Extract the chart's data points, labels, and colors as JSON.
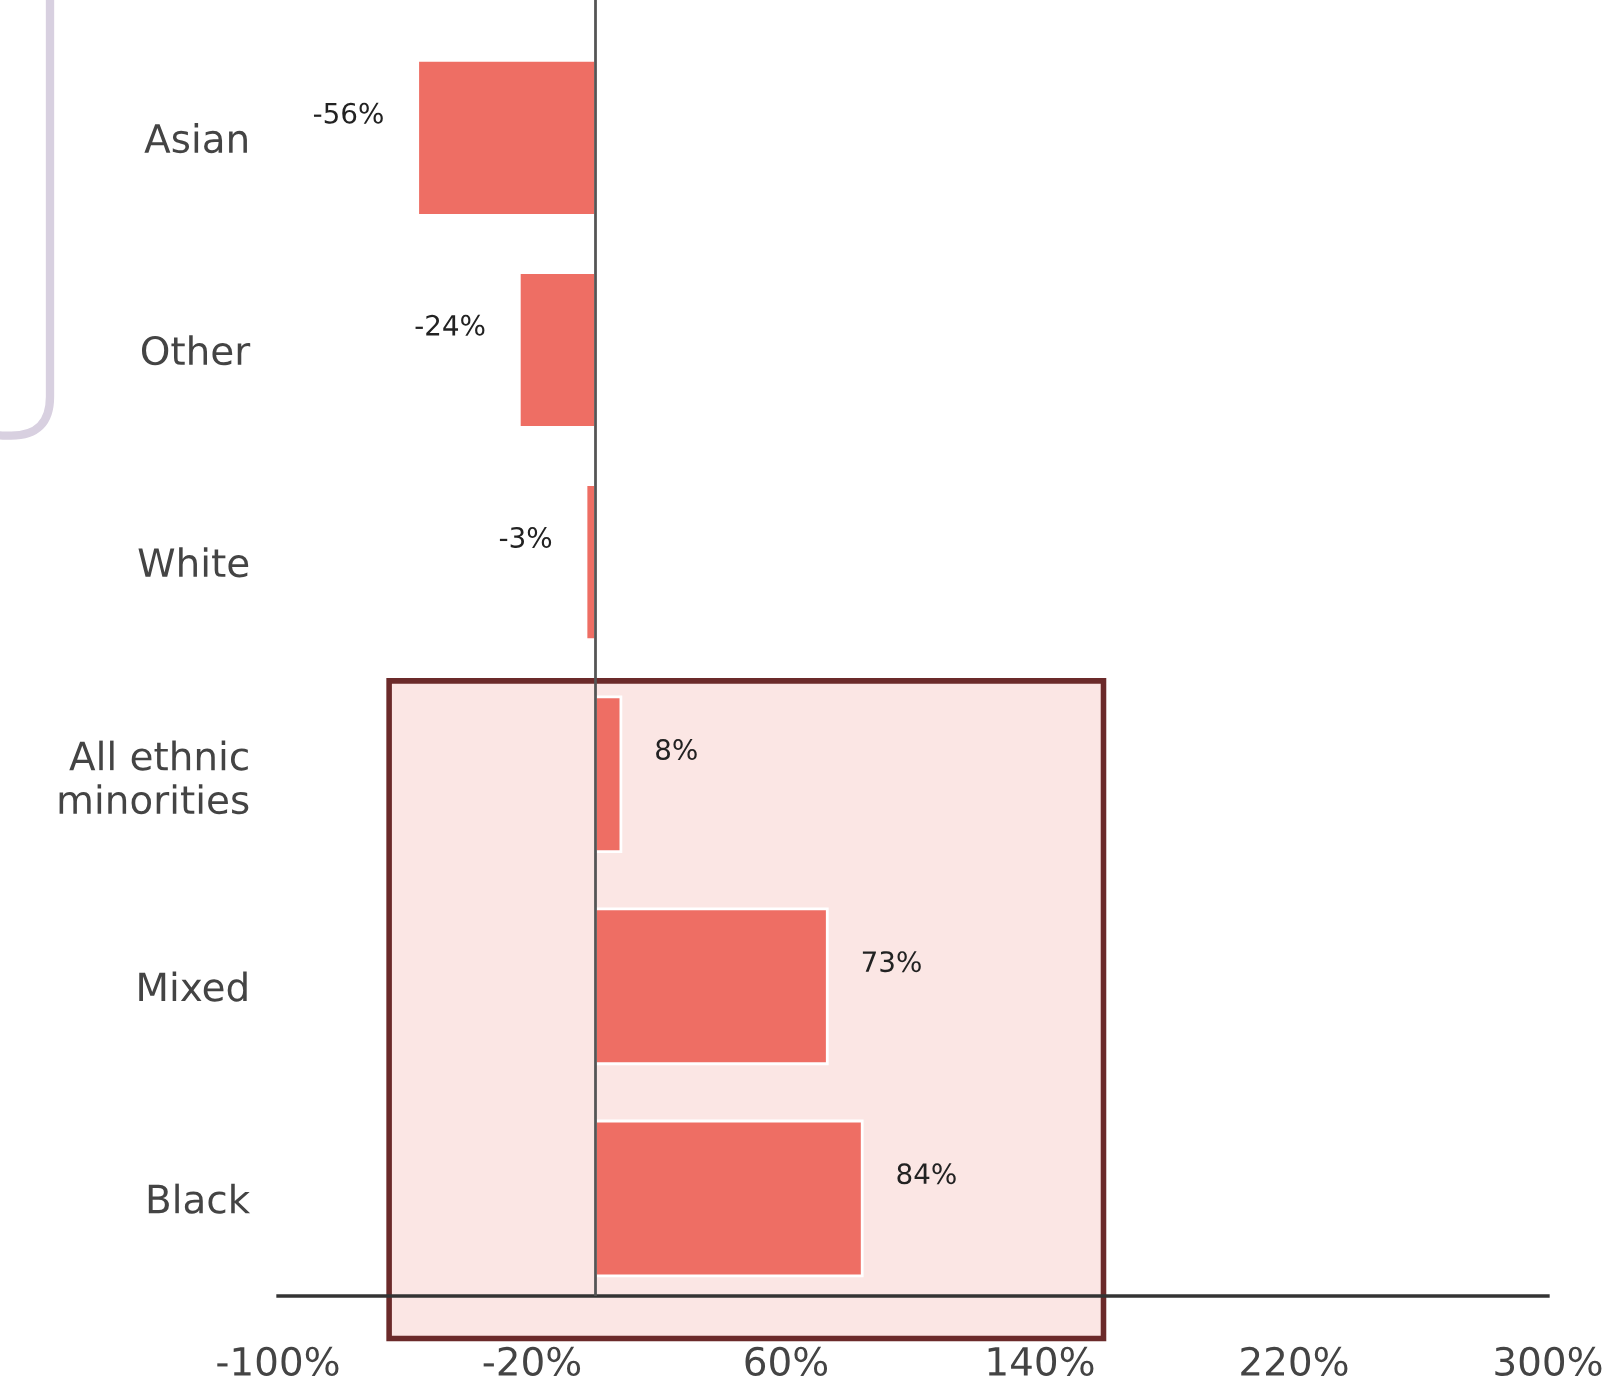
{
  "chart_data": {
    "type": "bar",
    "orientation": "horizontal",
    "categories": [
      "Asian",
      "Other",
      "White",
      "All ethnic\nminorities",
      "Mixed",
      "Black"
    ],
    "values": [
      -56,
      -24,
      -3,
      8,
      73,
      84
    ],
    "value_labels": [
      "-56%",
      "-24%",
      "-3%",
      "8%",
      "73%",
      "84%"
    ],
    "color": "#ee6e64",
    "xlim": [
      -100,
      300
    ],
    "xticks": [
      {
        "value": -100,
        "label": "-100%"
      },
      {
        "value": -20,
        "label": "-20%"
      },
      {
        "value": 60,
        "label": "60%"
      },
      {
        "value": 140,
        "label": "140%"
      },
      {
        "value": 220,
        "label": "220%"
      },
      {
        "value": 300,
        "label": "300%"
      }
    ],
    "bands": [
      {
        "axis": "y",
        "from": "All ethnic\nminorities",
        "to": "Black",
        "color": "#fbe6e4"
      }
    ],
    "grid": false
  }
}
